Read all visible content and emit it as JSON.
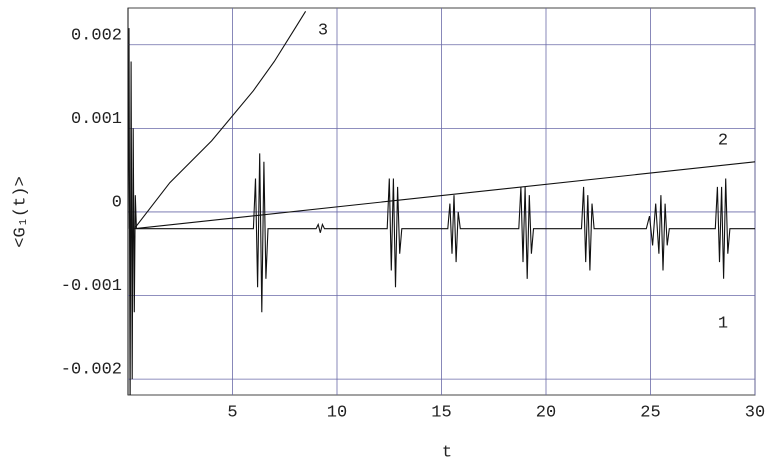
{
  "chart_data": {
    "type": "line",
    "x_label": "t",
    "y_label": "<G₁(t)>",
    "xlim": [
      0,
      30
    ],
    "ylim": [
      -0.00219,
      0.00244
    ],
    "xticks": [
      5,
      10,
      15,
      20,
      25,
      30
    ],
    "yticks": [
      -0.002,
      -0.001,
      0,
      0.001,
      0.002
    ],
    "grid": true,
    "grid_color": "#6a6aa8",
    "series": [
      {
        "name": "1",
        "color": "#111111",
        "x": [
          0,
          0.05,
          0.1,
          0.15,
          0.2,
          0.25,
          0.3,
          0.35,
          0.4,
          6.0,
          6.1,
          6.2,
          6.3,
          6.4,
          6.5,
          6.6,
          6.7,
          9.0,
          9.1,
          9.2,
          9.3,
          9.4,
          12.4,
          12.5,
          12.6,
          12.7,
          12.8,
          12.9,
          13.0,
          13.1,
          15.3,
          15.4,
          15.5,
          15.6,
          15.7,
          15.8,
          15.9,
          18.7,
          18.8,
          18.9,
          19.0,
          19.1,
          19.2,
          19.3,
          19.4,
          21.7,
          21.8,
          21.9,
          22.0,
          22.1,
          22.2,
          22.3,
          24.8,
          24.95,
          25.1,
          25.25,
          25.4,
          25.5,
          25.6,
          25.7,
          25.8,
          25.9,
          28.1,
          28.2,
          28.3,
          28.4,
          28.5,
          28.6,
          28.7,
          28.8,
          30
        ],
        "values": [
          -0.0002,
          0.0022,
          -0.0024,
          0.0018,
          -0.002,
          0.001,
          -0.0012,
          0.0002,
          -0.0002,
          -0.0002,
          0.0004,
          -0.0009,
          0.0007,
          -0.0012,
          0.0006,
          -0.0008,
          -0.0002,
          -0.0002,
          -0.00015,
          -0.00025,
          -0.00015,
          -0.0002,
          -0.0002,
          0.0004,
          -0.0007,
          0.0004,
          -0.0009,
          0.0003,
          -0.0005,
          -0.0002,
          -0.0002,
          0.0001,
          -0.0005,
          0.0002,
          -0.0006,
          0,
          -0.0002,
          -0.0002,
          0.0003,
          -0.0006,
          0.0003,
          -0.0008,
          0.0002,
          -0.0005,
          -0.0002,
          -0.0002,
          0.0003,
          -0.0006,
          0.0002,
          -0.0007,
          0.0001,
          -0.0002,
          -0.0002,
          -5e-05,
          -0.0004,
          0.0001,
          -0.0005,
          0.0002,
          -0.0007,
          0.0001,
          -0.0004,
          -0.0002,
          -0.0002,
          0.0003,
          -0.0006,
          0.0003,
          -0.0008,
          0.0004,
          -0.0005,
          -0.0002,
          -0.0002
        ]
      },
      {
        "name": "2",
        "color": "#111111",
        "x": [
          0.3,
          30
        ],
        "values": [
          -0.0002,
          0.0006
        ]
      },
      {
        "name": "3",
        "color": "#111111",
        "x": [
          0.3,
          2,
          4,
          6,
          7,
          8,
          8.5
        ],
        "values": [
          -0.0002,
          0.00035,
          0.00085,
          0.00145,
          0.0018,
          0.0022,
          0.0024
        ]
      }
    ]
  }
}
